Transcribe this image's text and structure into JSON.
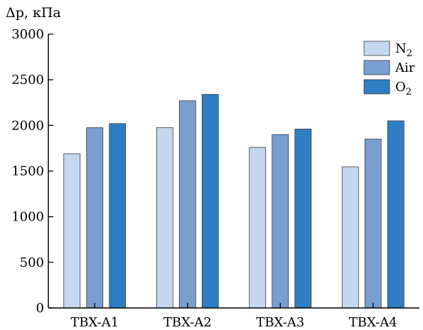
{
  "chart_data": {
    "type": "bar",
    "ylabel": "Δp, кПа",
    "ylim": [
      0,
      3000
    ],
    "yticks": [
      "0",
      "500",
      "1000",
      "1500",
      "2000",
      "2500",
      "3000"
    ],
    "categories": [
      "TBX-A1",
      "TBX-A2",
      "TBX-A3",
      "TBX-A4"
    ],
    "series": [
      {
        "name": "N",
        "name_sub": "2",
        "color": "#c5d7ef",
        "values": [
          1690,
          1975,
          1760,
          1545
        ]
      },
      {
        "name": "Air",
        "name_sub": "",
        "color": "#789fd0",
        "values": [
          1975,
          2270,
          1900,
          1850
        ]
      },
      {
        "name": "O",
        "name_sub": "2",
        "color": "#2e7ec3",
        "values": [
          2020,
          2340,
          1960,
          2050
        ]
      }
    ],
    "legend": "top-right",
    "grid": false
  }
}
